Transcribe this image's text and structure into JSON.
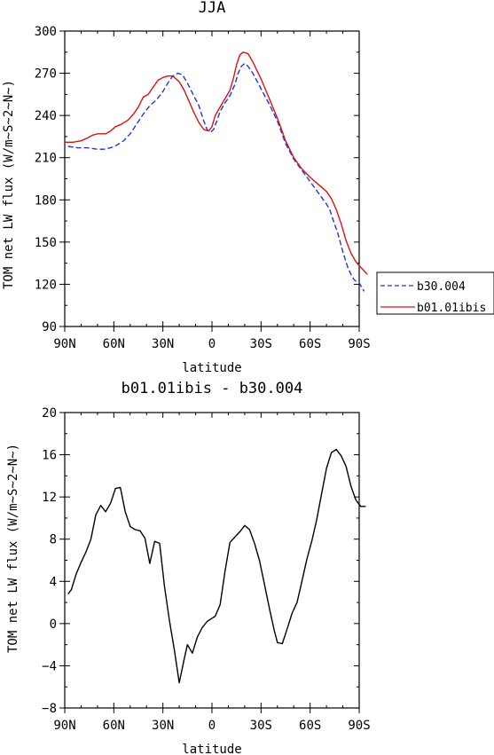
{
  "chart_data": [
    {
      "type": "line",
      "title": "JJA",
      "xlabel": "latitude",
      "ylabel": "TOM net LW flux (W/m~S~2~N~)",
      "x_tick_labels": [
        "90N",
        "60N",
        "30N",
        "0",
        "30S",
        "60S",
        "90S"
      ],
      "x_ticks": [
        90,
        60,
        30,
        0,
        -30,
        -60,
        -90
      ],
      "xlim": [
        90,
        -90
      ],
      "ylim": [
        90,
        300
      ],
      "y_ticks": [
        90,
        120,
        150,
        180,
        210,
        240,
        270,
        300
      ],
      "legend_position": "outside-right",
      "grid": false,
      "series": [
        {
          "name": "b30.004",
          "color": "#2233dd",
          "dash": true,
          "points": [
            [
              88,
              218
            ],
            [
              82,
              217
            ],
            [
              76,
              217
            ],
            [
              70,
              216
            ],
            [
              66,
              216
            ],
            [
              62,
              217
            ],
            [
              58,
              219
            ],
            [
              54,
              222
            ],
            [
              50,
              227
            ],
            [
              46,
              234
            ],
            [
              42,
              241
            ],
            [
              38,
              247
            ],
            [
              34,
              251
            ],
            [
              30,
              257
            ],
            [
              27,
              263
            ],
            [
              24,
              268
            ],
            [
              21,
              270
            ],
            [
              18,
              269
            ],
            [
              15,
              263
            ],
            [
              12,
              256
            ],
            [
              8,
              247
            ],
            [
              5,
              236
            ],
            [
              3,
              230
            ],
            [
              1,
              228
            ],
            [
              -1,
              230
            ],
            [
              -3,
              236
            ],
            [
              -5,
              243
            ],
            [
              -8,
              249
            ],
            [
              -11,
              254
            ],
            [
              -14,
              262
            ],
            [
              -16,
              270
            ],
            [
              -18,
              275
            ],
            [
              -20,
              277
            ],
            [
              -22,
              275
            ],
            [
              -25,
              270
            ],
            [
              -30,
              259
            ],
            [
              -35,
              248
            ],
            [
              -40,
              236
            ],
            [
              -45,
              220
            ],
            [
              -50,
              209
            ],
            [
              -55,
              201
            ],
            [
              -60,
              193
            ],
            [
              -65,
              185
            ],
            [
              -70,
              177
            ],
            [
              -72,
              173
            ],
            [
              -74,
              166
            ],
            [
              -77,
              156
            ],
            [
              -80,
              143
            ],
            [
              -83,
              132
            ],
            [
              -85,
              127
            ],
            [
              -87,
              123
            ],
            [
              -90,
              121
            ],
            [
              -93,
              115
            ]
          ]
        },
        {
          "name": "b01.01ibis",
          "color": "#dd1111",
          "dash": false,
          "points": [
            [
              90,
              221
            ],
            [
              85,
              221
            ],
            [
              80,
              222
            ],
            [
              76,
              224
            ],
            [
              73,
              226
            ],
            [
              70,
              227
            ],
            [
              65,
              227
            ],
            [
              62,
              229
            ],
            [
              59,
              232
            ],
            [
              55,
              234
            ],
            [
              51,
              237
            ],
            [
              48,
              241
            ],
            [
              45,
              246
            ],
            [
              42,
              253
            ],
            [
              39,
              255
            ],
            [
              36,
              260
            ],
            [
              33,
              265
            ],
            [
              30,
              267
            ],
            [
              27,
              268
            ],
            [
              24,
              268
            ],
            [
              20,
              264
            ],
            [
              17,
              258
            ],
            [
              14,
              250
            ],
            [
              11,
              242
            ],
            [
              8,
              235
            ],
            [
              5,
              230
            ],
            [
              2,
              229
            ],
            [
              0,
              232
            ],
            [
              -2,
              240
            ],
            [
              -5,
              246
            ],
            [
              -8,
              252
            ],
            [
              -11,
              258
            ],
            [
              -13,
              266
            ],
            [
              -15,
              276
            ],
            [
              -17,
              283
            ],
            [
              -19,
              285
            ],
            [
              -22,
              284
            ],
            [
              -25,
              278
            ],
            [
              -30,
              266
            ],
            [
              -35,
              252
            ],
            [
              -40,
              238
            ],
            [
              -45,
              222
            ],
            [
              -50,
              210
            ],
            [
              -55,
              202
            ],
            [
              -60,
              196
            ],
            [
              -65,
              191
            ],
            [
              -70,
              186
            ],
            [
              -73,
              181
            ],
            [
              -76,
              173
            ],
            [
              -79,
              163
            ],
            [
              -82,
              151
            ],
            [
              -85,
              142
            ],
            [
              -88,
              136
            ],
            [
              -91,
              132
            ],
            [
              -95,
              127
            ]
          ]
        }
      ]
    },
    {
      "type": "line",
      "title": "b01.01ibis - b30.004",
      "xlabel": "latitude",
      "ylabel": "TOM net LW flux (W/m~S~2~N~)",
      "x_tick_labels": [
        "90N",
        "60N",
        "30N",
        "0",
        "30S",
        "60S",
        "90S"
      ],
      "x_ticks": [
        90,
        60,
        30,
        0,
        -30,
        -60,
        -90
      ],
      "xlim": [
        90,
        -90
      ],
      "ylim": [
        -8,
        20
      ],
      "y_ticks": [
        -8,
        -4,
        0,
        4,
        8,
        12,
        16,
        20
      ],
      "grid": false,
      "series": [
        {
          "color": "#000000",
          "dash": false,
          "points": [
            [
              88,
              2.8
            ],
            [
              86,
              3.2
            ],
            [
              83,
              4.7
            ],
            [
              80,
              5.8
            ],
            [
              77,
              6.8
            ],
            [
              74,
              8.0
            ],
            [
              71,
              10.3
            ],
            [
              68,
              11.2
            ],
            [
              65,
              10.6
            ],
            [
              62,
              11.4
            ],
            [
              59,
              12.8
            ],
            [
              56,
              12.9
            ],
            [
              53,
              10.6
            ],
            [
              50,
              9.2
            ],
            [
              47,
              8.9
            ],
            [
              44,
              8.8
            ],
            [
              41,
              8.1
            ],
            [
              38,
              5.7
            ],
            [
              35,
              7.8
            ],
            [
              32,
              7.6
            ],
            [
              29,
              3.5
            ],
            [
              26,
              0.3
            ],
            [
              23,
              -2.5
            ],
            [
              20,
              -5.6
            ],
            [
              17,
              -3.4
            ],
            [
              15,
              -2.0
            ],
            [
              12,
              -2.8
            ],
            [
              9,
              -1.3
            ],
            [
              6,
              -0.4
            ],
            [
              3,
              0.2
            ],
            [
              0,
              0.5
            ],
            [
              -2,
              0.7
            ],
            [
              -5,
              1.8
            ],
            [
              -8,
              5.0
            ],
            [
              -11,
              7.7
            ],
            [
              -14,
              8.2
            ],
            [
              -17,
              8.7
            ],
            [
              -20,
              9.3
            ],
            [
              -23,
              8.9
            ],
            [
              -26,
              7.6
            ],
            [
              -29,
              6.0
            ],
            [
              -32,
              3.8
            ],
            [
              -35,
              1.5
            ],
            [
              -38,
              -0.6
            ],
            [
              -40,
              -1.8
            ],
            [
              -43,
              -1.9
            ],
            [
              -46,
              -0.5
            ],
            [
              -49,
              1.0
            ],
            [
              -52,
              2.0
            ],
            [
              -55,
              4.0
            ],
            [
              -58,
              6.1
            ],
            [
              -61,
              7.8
            ],
            [
              -64,
              9.8
            ],
            [
              -67,
              12.3
            ],
            [
              -70,
              14.7
            ],
            [
              -73,
              16.2
            ],
            [
              -76,
              16.5
            ],
            [
              -79,
              15.9
            ],
            [
              -82,
              14.9
            ],
            [
              -85,
              13.0
            ],
            [
              -88,
              11.7
            ],
            [
              -91,
              11.1
            ],
            [
              -94,
              11.1
            ]
          ]
        }
      ]
    }
  ]
}
